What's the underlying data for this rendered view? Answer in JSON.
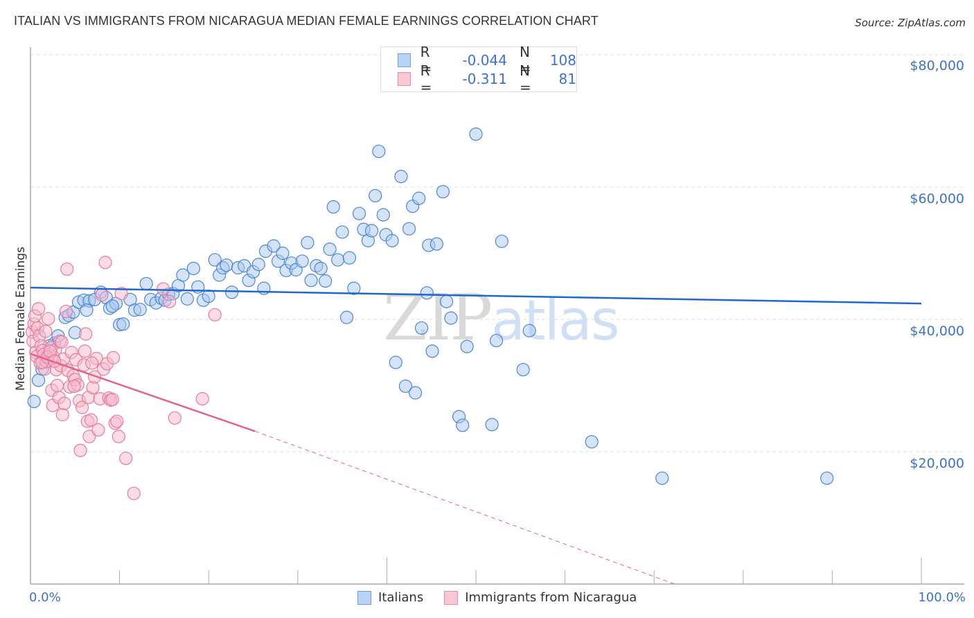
{
  "header": {
    "title": "ITALIAN VS IMMIGRANTS FROM NICARAGUA MEDIAN FEMALE EARNINGS CORRELATION CHART",
    "source": "Source: ZipAtlas.com"
  },
  "watermark": {
    "zip": "ZIP",
    "atlas": "atlas"
  },
  "legend_top": {
    "rows": [
      {
        "r_label": "R =",
        "r_value": "-0.044",
        "n_label": "N =",
        "n_value": "108",
        "color": "#b8d3f5",
        "border": "#6c9fe0"
      },
      {
        "r_label": "R =",
        "r_value": "-0.311",
        "n_label": "N =",
        "n_value": "81",
        "color": "#f9c6d4",
        "border": "#e98aa6"
      }
    ]
  },
  "axes": {
    "ylabel": "Median Female Earnings",
    "yticks": [
      "$80,000",
      "$60,000",
      "$40,000",
      "$20,000"
    ],
    "xtick_left": "0.0%",
    "xtick_right": "100.0%"
  },
  "legend_bottom": {
    "items": [
      {
        "label": "Italians",
        "color": "#b8d3f5",
        "border": "#6c9fe0"
      },
      {
        "label": "Immigrants from Nicaragua",
        "color": "#f9c6d4",
        "border": "#e98aa6"
      }
    ]
  },
  "colors": {
    "blue_fill": "#a9c8f0",
    "blue_stroke": "#4a86d8",
    "blue_line": "#2166c9",
    "pink_fill": "#f7b9cb",
    "pink_stroke": "#e57b9c",
    "pink_line": "#e5628a",
    "grid": "#dddddd",
    "axis": "#aaaaaa"
  },
  "chart_data": {
    "type": "scatter",
    "title": "ITALIAN VS IMMIGRANTS FROM NICARAGUA MEDIAN FEMALE EARNINGS CORRELATION CHART",
    "xlabel": "",
    "ylabel": "Median Female Earnings",
    "xlim": [
      0,
      100
    ],
    "ylim": [
      0,
      88000
    ],
    "x_unit": "%",
    "yticks": [
      20000,
      40000,
      60000,
      80000
    ],
    "grid": true,
    "legend_position": "top-center",
    "series": [
      {
        "name": "Italians",
        "R": -0.044,
        "N": 108,
        "trend": {
          "x": [
            0,
            100
          ],
          "y": [
            44800,
            42400
          ]
        },
        "points": [
          [
            0.4,
            27600
          ],
          [
            0.9,
            30800
          ],
          [
            1.3,
            32500
          ],
          [
            1.8,
            33700
          ],
          [
            2.3,
            35000
          ],
          [
            2.7,
            36400
          ],
          [
            3.1,
            37500
          ],
          [
            3.9,
            40300
          ],
          [
            4.3,
            40600
          ],
          [
            4.8,
            41100
          ],
          [
            5.4,
            42600
          ],
          [
            6.0,
            42900
          ],
          [
            6.6,
            42800
          ],
          [
            7.2,
            43000
          ],
          [
            7.9,
            44100
          ],
          [
            8.5,
            43300
          ],
          [
            8.9,
            41700
          ],
          [
            9.6,
            42400
          ],
          [
            10.0,
            39200
          ],
          [
            10.4,
            39300
          ],
          [
            11.2,
            43000
          ],
          [
            11.7,
            41400
          ],
          [
            12.3,
            41500
          ],
          [
            13.0,
            45400
          ],
          [
            13.5,
            43000
          ],
          [
            14.1,
            42500
          ],
          [
            14.7,
            43200
          ],
          [
            15.1,
            42900
          ],
          [
            15.5,
            43800
          ],
          [
            16.0,
            43900
          ],
          [
            16.6,
            45100
          ],
          [
            17.1,
            46700
          ],
          [
            17.6,
            43100
          ],
          [
            18.3,
            47700
          ],
          [
            18.8,
            44900
          ],
          [
            19.4,
            42900
          ],
          [
            20.0,
            43500
          ],
          [
            20.7,
            49000
          ],
          [
            21.2,
            46700
          ],
          [
            21.6,
            47800
          ],
          [
            22.0,
            48200
          ],
          [
            22.6,
            44100
          ],
          [
            23.3,
            47800
          ],
          [
            24.0,
            48100
          ],
          [
            24.5,
            45900
          ],
          [
            25.0,
            47200
          ],
          [
            25.6,
            48300
          ],
          [
            26.2,
            44700
          ],
          [
            26.4,
            50300
          ],
          [
            27.3,
            51100
          ],
          [
            27.8,
            48800
          ],
          [
            28.3,
            50000
          ],
          [
            28.7,
            47400
          ],
          [
            29.3,
            48500
          ],
          [
            29.8,
            47500
          ],
          [
            30.5,
            48800
          ],
          [
            31.1,
            51600
          ],
          [
            31.5,
            45900
          ],
          [
            32.1,
            48100
          ],
          [
            32.6,
            47700
          ],
          [
            33.1,
            45800
          ],
          [
            33.6,
            50600
          ],
          [
            34.0,
            57000
          ],
          [
            34.5,
            49000
          ],
          [
            35.0,
            53200
          ],
          [
            35.5,
            40300
          ],
          [
            35.8,
            49300
          ],
          [
            36.3,
            44700
          ],
          [
            36.9,
            56000
          ],
          [
            37.4,
            53600
          ],
          [
            37.9,
            51900
          ],
          [
            38.3,
            53400
          ],
          [
            38.7,
            58700
          ],
          [
            39.1,
            65400
          ],
          [
            39.6,
            55800
          ],
          [
            39.9,
            52800
          ],
          [
            40.6,
            51900
          ],
          [
            41.0,
            33500
          ],
          [
            41.6,
            61600
          ],
          [
            42.1,
            29900
          ],
          [
            42.5,
            53700
          ],
          [
            42.9,
            57100
          ],
          [
            43.2,
            28900
          ],
          [
            43.6,
            58300
          ],
          [
            43.9,
            38700
          ],
          [
            44.5,
            44000
          ],
          [
            44.7,
            51200
          ],
          [
            45.1,
            35200
          ],
          [
            45.6,
            51400
          ],
          [
            46.3,
            59300
          ],
          [
            46.7,
            42700
          ],
          [
            47.2,
            40200
          ],
          [
            48.1,
            25300
          ],
          [
            48.5,
            24000
          ],
          [
            49.0,
            35900
          ],
          [
            50.0,
            68000
          ],
          [
            51.8,
            24100
          ],
          [
            52.3,
            36800
          ],
          [
            52.9,
            51800
          ],
          [
            55.3,
            32400
          ],
          [
            56.0,
            38300
          ],
          [
            63.0,
            21500
          ],
          [
            70.9,
            16000
          ],
          [
            89.4,
            16000
          ],
          [
            2.1,
            36000
          ],
          [
            5.0,
            38000
          ],
          [
            6.3,
            41400
          ],
          [
            9.2,
            42000
          ]
        ]
      },
      {
        "name": "Immigrants from Nicaragua",
        "R": -0.311,
        "N": 81,
        "trend": {
          "x": [
            0,
            25.2
          ],
          "y": [
            34800,
            23100
          ],
          "dashed_extension": {
            "x": [
              25.2,
              72.3
            ],
            "y": [
              23100,
              0
            ]
          }
        },
        "points": [
          [
            0.2,
            38100
          ],
          [
            0.3,
            36700
          ],
          [
            0.4,
            39300
          ],
          [
            0.5,
            40500
          ],
          [
            0.6,
            35000
          ],
          [
            0.7,
            34400
          ],
          [
            0.8,
            38700
          ],
          [
            0.9,
            41600
          ],
          [
            1.0,
            37500
          ],
          [
            1.1,
            33400
          ],
          [
            1.2,
            36000
          ],
          [
            1.4,
            35300
          ],
          [
            1.5,
            34700
          ],
          [
            1.6,
            32500
          ],
          [
            1.7,
            38200
          ],
          [
            1.8,
            33600
          ],
          [
            2.0,
            40100
          ],
          [
            2.1,
            34600
          ],
          [
            2.3,
            35700
          ],
          [
            2.4,
            29300
          ],
          [
            2.5,
            27000
          ],
          [
            2.6,
            34300
          ],
          [
            2.8,
            35400
          ],
          [
            2.9,
            32400
          ],
          [
            3.0,
            30000
          ],
          [
            3.2,
            28200
          ],
          [
            3.3,
            36700
          ],
          [
            3.4,
            33000
          ],
          [
            3.6,
            25600
          ],
          [
            3.7,
            34000
          ],
          [
            3.8,
            27300
          ],
          [
            4.0,
            41200
          ],
          [
            4.1,
            47600
          ],
          [
            4.2,
            32300
          ],
          [
            4.4,
            29800
          ],
          [
            4.6,
            35000
          ],
          [
            4.8,
            31500
          ],
          [
            5.0,
            30900
          ],
          [
            5.1,
            33900
          ],
          [
            5.3,
            30100
          ],
          [
            5.5,
            27700
          ],
          [
            5.6,
            20200
          ],
          [
            5.8,
            26700
          ],
          [
            6.0,
            33100
          ],
          [
            6.1,
            35200
          ],
          [
            6.2,
            37800
          ],
          [
            6.4,
            24600
          ],
          [
            6.5,
            28200
          ],
          [
            6.6,
            22300
          ],
          [
            6.8,
            24800
          ],
          [
            7.0,
            29700
          ],
          [
            7.2,
            31300
          ],
          [
            7.4,
            34100
          ],
          [
            7.6,
            23300
          ],
          [
            7.8,
            28000
          ],
          [
            8.0,
            43700
          ],
          [
            8.2,
            32500
          ],
          [
            8.4,
            48600
          ],
          [
            8.6,
            33300
          ],
          [
            8.8,
            28100
          ],
          [
            9.0,
            27800
          ],
          [
            9.2,
            27900
          ],
          [
            9.3,
            34200
          ],
          [
            9.5,
            24300
          ],
          [
            9.7,
            24600
          ],
          [
            9.9,
            22300
          ],
          [
            10.2,
            43900
          ],
          [
            10.7,
            19000
          ],
          [
            11.6,
            13700
          ],
          [
            14.9,
            44600
          ],
          [
            15.6,
            42700
          ],
          [
            16.2,
            25100
          ],
          [
            19.3,
            28000
          ],
          [
            20.7,
            40700
          ],
          [
            1.3,
            33500
          ],
          [
            1.9,
            34300
          ],
          [
            2.2,
            35200
          ],
          [
            2.7,
            33700
          ],
          [
            3.5,
            36600
          ],
          [
            4.9,
            29900
          ],
          [
            6.9,
            33400
          ]
        ]
      }
    ]
  }
}
